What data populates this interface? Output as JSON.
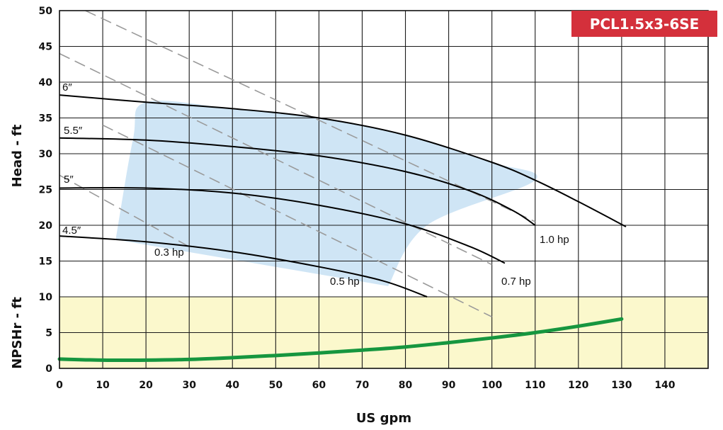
{
  "chart_data": {
    "type": "line",
    "title": "PCL1.5x3-6SE",
    "xlabel": "US gpm",
    "ylabel_upper": "Head - ft",
    "ylabel_lower": "NPSHr - ft",
    "xlim": [
      0,
      150
    ],
    "ylim": [
      0,
      50
    ],
    "x_ticks": [
      0,
      10,
      20,
      30,
      40,
      50,
      60,
      70,
      80,
      90,
      100,
      110,
      120,
      130,
      140
    ],
    "y_ticks": [
      0,
      5,
      10,
      15,
      20,
      25,
      30,
      35,
      40,
      45,
      50
    ],
    "grid": true,
    "impeller_curves": [
      {
        "name": "6″",
        "x": [
          0,
          20,
          40,
          60,
          80,
          100,
          110,
          120,
          131
        ],
        "y": [
          38.2,
          37.2,
          36.3,
          35.0,
          32.6,
          28.8,
          26.3,
          23.3,
          19.8
        ]
      },
      {
        "name": "5.5″",
        "x": [
          0,
          20,
          40,
          60,
          80,
          95,
          105,
          110
        ],
        "y": [
          32.2,
          31.9,
          31.0,
          29.7,
          27.5,
          24.8,
          22.0,
          20.0
        ]
      },
      {
        "name": "5″",
        "x": [
          0,
          20,
          40,
          60,
          80,
          95,
          103
        ],
        "y": [
          25.2,
          25.2,
          24.5,
          22.8,
          20.2,
          17.0,
          14.7
        ]
      },
      {
        "name": "4.5″",
        "x": [
          0,
          20,
          40,
          60,
          75,
          85
        ],
        "y": [
          18.5,
          17.7,
          16.3,
          14.2,
          12.2,
          10.0
        ]
      }
    ],
    "power_lines": [
      {
        "name": "1.0 hp",
        "x": [
          6,
          110
        ],
        "y": [
          50,
          20.5
        ]
      },
      {
        "name": "0.7 hp",
        "x": [
          0,
          100
        ],
        "y": [
          44,
          14.5
        ]
      },
      {
        "name": "0.5 hp",
        "x": [
          10,
          100
        ],
        "y": [
          34,
          7.2
        ]
      },
      {
        "name": "0.3 hp",
        "x": [
          0,
          30
        ],
        "y": [
          27,
          17
        ]
      }
    ],
    "operating_region": {
      "x": [
        13,
        17,
        20,
        40,
        60,
        80,
        100,
        110,
        85,
        76
      ],
      "y": [
        18,
        32,
        37.2,
        36.3,
        35.0,
        32.6,
        28.8,
        26.3,
        20,
        11.5
      ]
    },
    "npshr_zone": {
      "ymin": 0,
      "ymax": 10
    },
    "npshr_curve": {
      "x": [
        0,
        10,
        20,
        30,
        40,
        50,
        60,
        70,
        80,
        90,
        100,
        110,
        120,
        130
      ],
      "y": [
        1.3,
        1.15,
        1.15,
        1.25,
        1.5,
        1.8,
        2.15,
        2.55,
        3.0,
        3.6,
        4.25,
        5.0,
        5.9,
        6.9
      ]
    },
    "colors": {
      "operating_region": "#cfe5f5",
      "npshr_zone": "#fbf8cc",
      "npshr_curve": "#16963f",
      "badge": "#d4303b",
      "power_lines": "#9a9a9a"
    }
  }
}
